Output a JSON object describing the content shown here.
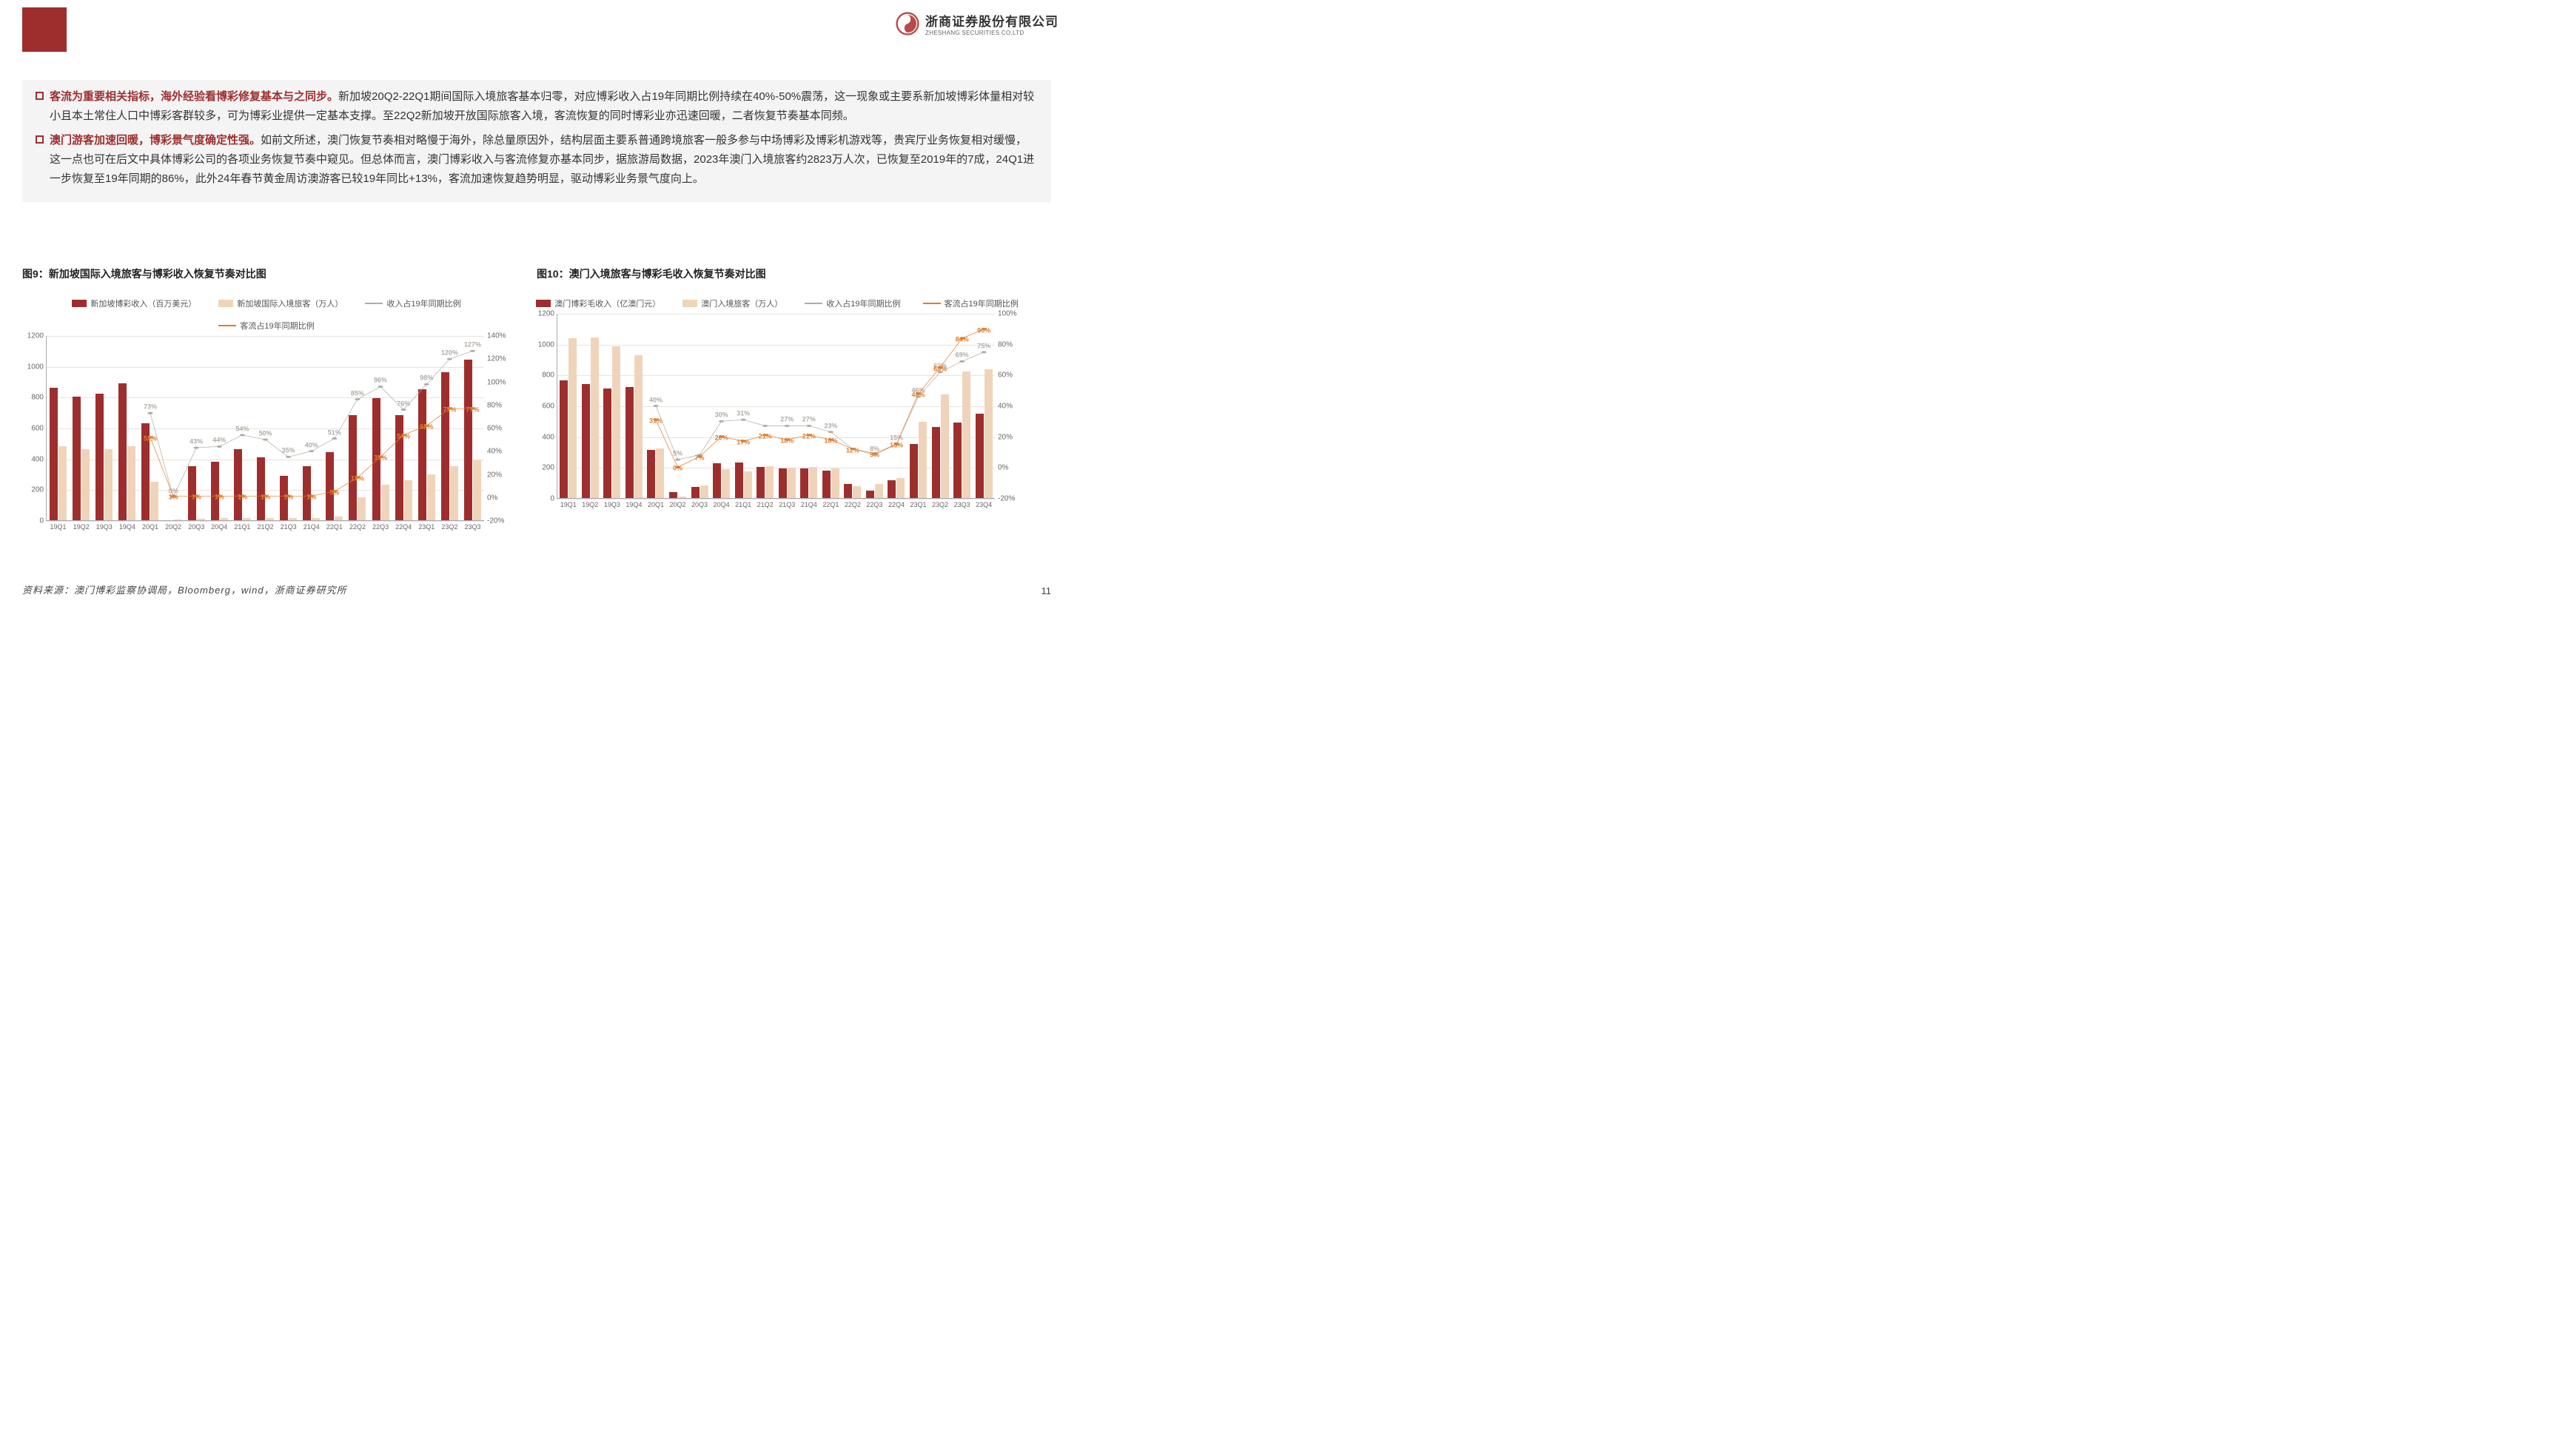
{
  "colors": {
    "brand_red": "#9e2e2e",
    "bar1": "#9e2e2e",
    "bar2": "#f0d4ba",
    "line1": "#b0aca6",
    "line2": "#e07b2e",
    "bg": "#ffffff",
    "panel_bg": "#f4f4f4",
    "grid": "#e8e4de"
  },
  "logo": {
    "cn": "浙商证券股份有限公司",
    "en": "ZHESHANG SECURITIES CO.LTD"
  },
  "bullets": [
    {
      "hl": "客流为重要相关指标，海外经验看博彩修复基本与之同步。",
      "body": "新加坡20Q2-22Q1期间国际入境旅客基本归零，对应博彩收入占19年同期比例持续在40%-50%震荡，这一现象或主要系新加坡博彩体量相对较小且本土常住人口中博彩客群较多，可为博彩业提供一定基本支撑。至22Q2新加坡开放国际旅客入境，客流恢复的同时博彩业亦迅速回暖，二者恢复节奏基本同频。"
    },
    {
      "hl": "澳门游客加速回暖，博彩景气度确定性强。",
      "body": "如前文所述，澳门恢复节奏相对略慢于海外，除总量原因外，结构层面主要系普通跨境旅客一般多参与中场博彩及博彩机游戏等，贵宾厅业务恢复相对缓慢，这一点也可在后文中具体博彩公司的各项业务恢复节奏中窥见。但总体而言，澳门博彩收入与客流修复亦基本同步，据旅游局数据，2023年澳门入境旅客约2823万人次，已恢复至2019年的7成，24Q1进一步恢复至19年同期的86%，此外24年春节黄金周访澳游客已较19年同比+13%，客流加速恢复趋势明显，驱动博彩业务景气度向上。"
    }
  ],
  "chart_titles": {
    "left": "图9：新加坡国际入境旅客与博彩收入恢复节奏对比图",
    "right": "图10：澳门入境旅客与博彩毛收入恢复节奏对比图"
  },
  "legends": {
    "left": [
      "新加坡博彩收入（百万美元）",
      "新加坡国际入境旅客（万人）",
      "收入占19年同期比例",
      "客流占19年同期比例"
    ],
    "right": [
      "澳门博彩毛收入（亿澳门元）",
      "澳门入境旅客（万人）",
      "收入占19年同期比例",
      "客流占19年同期比例"
    ]
  },
  "chart9": {
    "type": "combo-bar-line",
    "x": [
      "19Q1",
      "19Q2",
      "19Q3",
      "19Q4",
      "20Q1",
      "20Q2",
      "20Q3",
      "20Q4",
      "21Q1",
      "21Q2",
      "21Q3",
      "21Q4",
      "22Q1",
      "22Q2",
      "22Q3",
      "22Q4",
      "23Q1",
      "23Q2",
      "23Q3"
    ],
    "bar1": [
      860,
      800,
      820,
      890,
      630,
      0,
      350,
      380,
      460,
      410,
      290,
      350,
      440,
      680,
      790,
      680,
      850,
      960,
      1040
    ],
    "bar2": [
      480,
      460,
      460,
      480,
      250,
      5,
      8,
      14,
      14,
      16,
      16,
      16,
      25,
      150,
      230,
      260,
      300,
      350,
      390
    ],
    "y1_lim": [
      0,
      1200
    ],
    "y1_ticks": [
      0,
      200,
      400,
      600,
      800,
      1000,
      1200
    ],
    "y2_lim": [
      -20,
      140
    ],
    "y2_ticks": [
      -20,
      0,
      20,
      40,
      60,
      80,
      100,
      120,
      140
    ],
    "line1_pct": [
      null,
      null,
      null,
      null,
      73,
      0,
      43,
      44,
      54,
      50,
      35,
      40,
      51,
      85,
      96,
      76,
      98,
      120,
      127
    ],
    "line2_pct": [
      null,
      null,
      null,
      null,
      52,
      1,
      1,
      1,
      1,
      1,
      1,
      1,
      5,
      17,
      35,
      54,
      62,
      77,
      77
    ],
    "line1_labels": {
      "4": "73%",
      "5": "0%",
      "6": "43%",
      "7": "44%",
      "8": "54%",
      "9": "50%",
      "10": "35%",
      "11": "40%",
      "12": "51%",
      "13": "85%",
      "14": "96%",
      "15": "76%",
      "16": "98%",
      "17": "120%",
      "18": "127%"
    },
    "line2_labels": {
      "4": "52%",
      "5": "1%",
      "6": "1%",
      "7": "1%",
      "8": "1%",
      "9": "1%",
      "10": "1%",
      "11": "1%",
      "12": "5%",
      "13": "17%",
      "14": "35%",
      "15": "54%",
      "16": "62%",
      "17": "77%",
      "18": "77%"
    }
  },
  "chart10": {
    "type": "combo-bar-line",
    "x": [
      "19Q1",
      "19Q2",
      "19Q3",
      "19Q4",
      "20Q1",
      "20Q2",
      "20Q3",
      "20Q4",
      "21Q1",
      "21Q2",
      "21Q3",
      "21Q4",
      "22Q1",
      "22Q2",
      "22Q3",
      "22Q4",
      "23Q1",
      "23Q2",
      "23Q3",
      "23Q4"
    ],
    "bar1": [
      765,
      740,
      710,
      720,
      310,
      40,
      70,
      225,
      230,
      200,
      190,
      190,
      180,
      90,
      50,
      115,
      350,
      460,
      490,
      545
    ],
    "bar2": [
      1035,
      1040,
      985,
      925,
      320,
      10,
      80,
      185,
      175,
      205,
      195,
      200,
      190,
      75,
      90,
      130,
      495,
      670,
      820,
      835
    ],
    "y1_lim": [
      0,
      1200
    ],
    "y1_ticks": [
      0,
      200,
      400,
      600,
      800,
      1000,
      1200
    ],
    "y2_lim": [
      -20,
      100
    ],
    "y2_ticks": [
      -20,
      0,
      20,
      40,
      60,
      80,
      100
    ],
    "line1_pct": [
      null,
      null,
      null,
      null,
      40,
      5,
      8,
      30,
      31,
      27,
      27,
      27,
      23,
      12,
      8,
      15,
      46,
      62,
      69,
      75
    ],
    "line2_pct": [
      null,
      null,
      null,
      null,
      31,
      0,
      7,
      20,
      17,
      21,
      18,
      21,
      18,
      12,
      9,
      15,
      48,
      65,
      84,
      90
    ],
    "line1_labels": {
      "4": "40%",
      "5": "5%",
      "7": "30%",
      "8": "31%",
      "10": "27%",
      "11": "27%",
      "12": "23%",
      "14": "8%",
      "15": "15%",
      "16": "46%",
      "17": "62%",
      "18": "69%",
      "19": "75%"
    },
    "line2_labels": {
      "4": "31%",
      "5": "0%",
      "6": "7%",
      "7": "20%",
      "8": "17%",
      "9": "21%",
      "10": "18%",
      "11": "21%",
      "12": "18%",
      "13": "12%",
      "14": "9%",
      "15": "15%",
      "16": "48%",
      "17": "65%",
      "18": "84%",
      "19": "90%"
    }
  },
  "source": "资料来源：澳门博彩监察协调局，Bloomberg，wind，浙商证券研究所",
  "page_number": "11"
}
